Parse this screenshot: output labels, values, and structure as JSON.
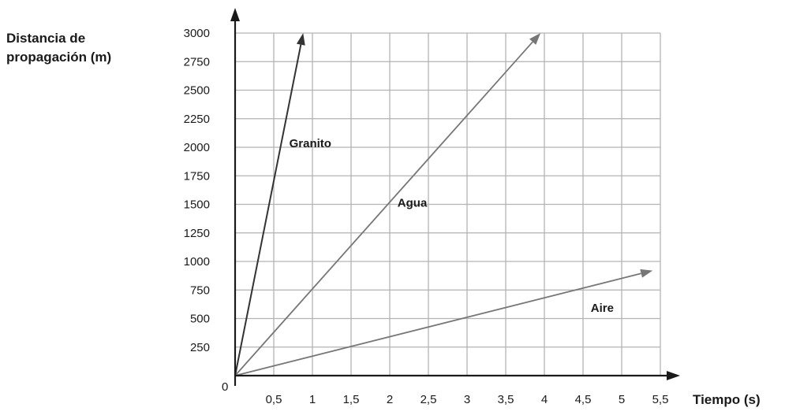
{
  "chart_data": {
    "type": "line",
    "ylabel": [
      "Distancia de",
      "propagación (m)"
    ],
    "xlabel": "Tiempo (s)",
    "origin_label": "0",
    "xlim": [
      0,
      5.5
    ],
    "ylim": [
      0,
      3000
    ],
    "x_ticks": [
      0.5,
      1,
      1.5,
      2,
      2.5,
      3,
      3.5,
      4,
      4.5,
      5,
      5.5
    ],
    "x_tick_labels": [
      "0,5",
      "1",
      "1,5",
      "2",
      "2,5",
      "3",
      "3,5",
      "4",
      "4,5",
      "5",
      "5,5"
    ],
    "y_ticks": [
      250,
      500,
      750,
      1000,
      1250,
      1500,
      1750,
      2000,
      2250,
      2500,
      2750,
      3000
    ],
    "y_tick_labels": [
      "250",
      "500",
      "750",
      "1000",
      "1250",
      "1500",
      "1750",
      "2000",
      "2250",
      "2500",
      "2750",
      "3000"
    ],
    "grid": true,
    "series": [
      {
        "name": "Granito",
        "x": [
          0,
          0.88
        ],
        "y": [
          0,
          3000
        ],
        "label_at": [
          0.7,
          2000
        ]
      },
      {
        "name": "Agua",
        "x": [
          0,
          3.95
        ],
        "y": [
          0,
          3000
        ],
        "label_at": [
          2.1,
          1480
        ]
      },
      {
        "name": "Aire",
        "x": [
          0,
          5.4
        ],
        "y": [
          0,
          920
        ],
        "label_at": [
          4.6,
          560
        ]
      }
    ],
    "colors": {
      "grid": "#b3b3b3",
      "axis": "#1a1a1a",
      "granito": "#333333",
      "series": "#777777"
    }
  }
}
